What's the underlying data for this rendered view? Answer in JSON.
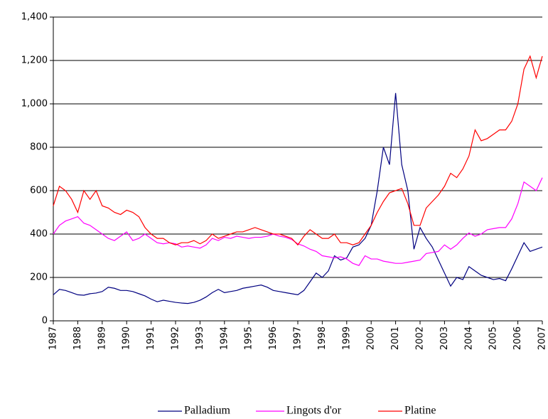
{
  "chart_data": {
    "type": "line",
    "x": [
      1987,
      1987.25,
      1987.5,
      1987.75,
      1988,
      1988.25,
      1988.5,
      1988.75,
      1989,
      1989.25,
      1989.5,
      1989.75,
      1990,
      1990.25,
      1990.5,
      1990.75,
      1991,
      1991.25,
      1991.5,
      1991.75,
      1992,
      1992.25,
      1992.5,
      1992.75,
      1993,
      1993.25,
      1993.5,
      1993.75,
      1994,
      1994.25,
      1994.5,
      1994.75,
      1995,
      1995.25,
      1995.5,
      1995.75,
      1996,
      1996.25,
      1996.5,
      1996.75,
      1997,
      1997.25,
      1997.5,
      1997.75,
      1998,
      1998.25,
      1998.5,
      1998.75,
      1999,
      1999.25,
      1999.5,
      1999.75,
      2000,
      2000.25,
      2000.5,
      2000.75,
      2001,
      2001.25,
      2001.5,
      2001.75,
      2002,
      2002.25,
      2002.5,
      2002.75,
      2003,
      2003.25,
      2003.5,
      2003.75,
      2004,
      2004.25,
      2004.5,
      2004.75,
      2005,
      2005.25,
      2005.5,
      2005.75,
      2006,
      2006.25,
      2006.5,
      2006.75,
      2007
    ],
    "series": [
      {
        "name": "Palladium",
        "color": "#000080",
        "values": [
          120,
          145,
          140,
          130,
          120,
          118,
          125,
          128,
          135,
          155,
          150,
          140,
          140,
          135,
          125,
          115,
          100,
          88,
          95,
          90,
          85,
          82,
          80,
          85,
          95,
          110,
          130,
          145,
          130,
          135,
          140,
          150,
          155,
          160,
          165,
          155,
          140,
          135,
          130,
          125,
          120,
          140,
          180,
          220,
          200,
          230,
          300,
          280,
          290,
          340,
          350,
          380,
          440,
          600,
          800,
          720,
          1050,
          720,
          600,
          330,
          430,
          380,
          340,
          280,
          220,
          160,
          200,
          190,
          250,
          230,
          210,
          200,
          190,
          195,
          185,
          240,
          300,
          360,
          320,
          330,
          340
        ]
      },
      {
        "name": "Lingots d'or",
        "color": "#ff00ff",
        "values": [
          400,
          440,
          460,
          470,
          480,
          450,
          440,
          420,
          400,
          380,
          370,
          390,
          410,
          370,
          380,
          400,
          380,
          360,
          355,
          360,
          355,
          340,
          345,
          340,
          335,
          350,
          380,
          370,
          385,
          380,
          390,
          385,
          380,
          385,
          385,
          390,
          400,
          390,
          385,
          375,
          355,
          345,
          330,
          320,
          300,
          295,
          290,
          295,
          285,
          265,
          255,
          300,
          285,
          285,
          275,
          270,
          265,
          265,
          270,
          275,
          280,
          310,
          315,
          320,
          350,
          330,
          350,
          380,
          405,
          390,
          400,
          420,
          425,
          430,
          430,
          470,
          540,
          640,
          620,
          600,
          660
        ]
      },
      {
        "name": "Platine",
        "color": "#ff0000",
        "values": [
          530,
          620,
          600,
          560,
          500,
          600,
          560,
          600,
          530,
          520,
          500,
          490,
          510,
          500,
          480,
          430,
          400,
          380,
          380,
          360,
          350,
          360,
          360,
          370,
          355,
          370,
          400,
          380,
          390,
          400,
          410,
          410,
          420,
          430,
          420,
          410,
          400,
          400,
          390,
          380,
          350,
          390,
          420,
          400,
          380,
          380,
          400,
          360,
          360,
          350,
          360,
          400,
          440,
          500,
          550,
          590,
          600,
          610,
          540,
          440,
          440,
          520,
          550,
          580,
          620,
          680,
          660,
          700,
          760,
          880,
          830,
          840,
          860,
          880,
          880,
          920,
          1000,
          1160,
          1220,
          1120,
          1220
        ]
      }
    ],
    "xlim": [
      1987,
      2007
    ],
    "xticks": [
      1987,
      1988,
      1989,
      1990,
      1991,
      1992,
      1993,
      1994,
      1995,
      1996,
      1997,
      1998,
      1999,
      2000,
      2001,
      2002,
      2003,
      2004,
      2005,
      2006,
      2007
    ],
    "ylim": [
      0,
      1400
    ],
    "yticks": [
      0,
      200,
      400,
      600,
      800,
      {
        "value": 1000,
        "label": "1,000"
      },
      {
        "value": 1200,
        "label": "1,200"
      },
      {
        "value": 1400,
        "label": "1,400"
      }
    ],
    "grid": true
  }
}
